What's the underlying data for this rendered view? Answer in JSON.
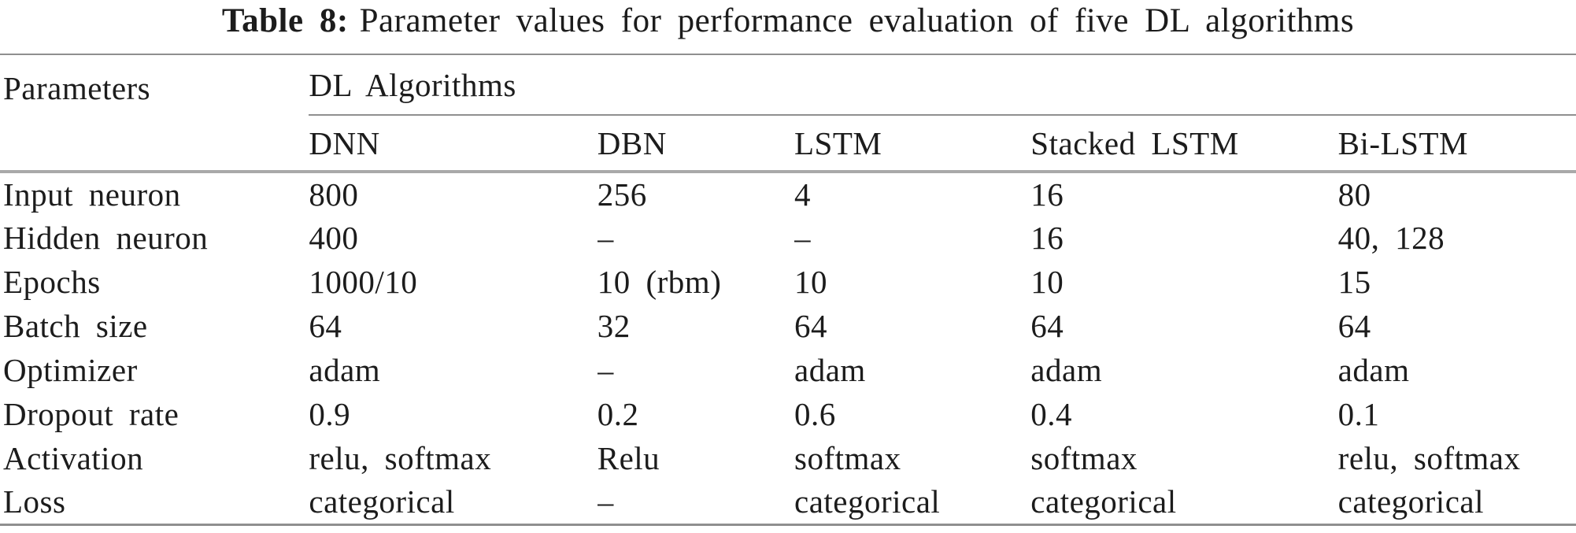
{
  "caption": {
    "label": "Table 8:",
    "text": "Parameter values for performance evaluation of five DL algorithms"
  },
  "table": {
    "corner_header": "Parameters",
    "group_header": "DL Algorithms",
    "columns": [
      "DNN",
      "DBN",
      "LSTM",
      "Stacked LSTM",
      "Bi-LSTM"
    ],
    "rows": [
      {
        "label": "Input neuron",
        "values": [
          "800",
          "256",
          "4",
          "16",
          "80"
        ]
      },
      {
        "label": "Hidden neuron",
        "values": [
          "400",
          "–",
          "–",
          "16",
          "40, 128"
        ]
      },
      {
        "label": "Epochs",
        "values": [
          "1000/10",
          "10 (rbm)",
          "10",
          "10",
          "15"
        ]
      },
      {
        "label": "Batch size",
        "values": [
          "64",
          "32",
          "64",
          "64",
          "64"
        ]
      },
      {
        "label": "Optimizer",
        "values": [
          "adam",
          "–",
          "adam",
          "adam",
          "adam"
        ]
      },
      {
        "label": "Dropout rate",
        "values": [
          "0.9",
          "0.2",
          "0.6",
          "0.4",
          "0.1"
        ]
      },
      {
        "label": "Activation",
        "values": [
          "relu, softmax",
          "Relu",
          "softmax",
          "softmax",
          "relu, softmax"
        ]
      },
      {
        "label": "Loss",
        "values": [
          "categorical",
          "–",
          "categorical",
          "categorical",
          "categorical"
        ]
      }
    ]
  },
  "colors": {
    "text": "#1c1c1c",
    "rule_thin": "#8f8f8f",
    "rule_heavy": "#a9a9a9",
    "background": "#ffffff"
  }
}
